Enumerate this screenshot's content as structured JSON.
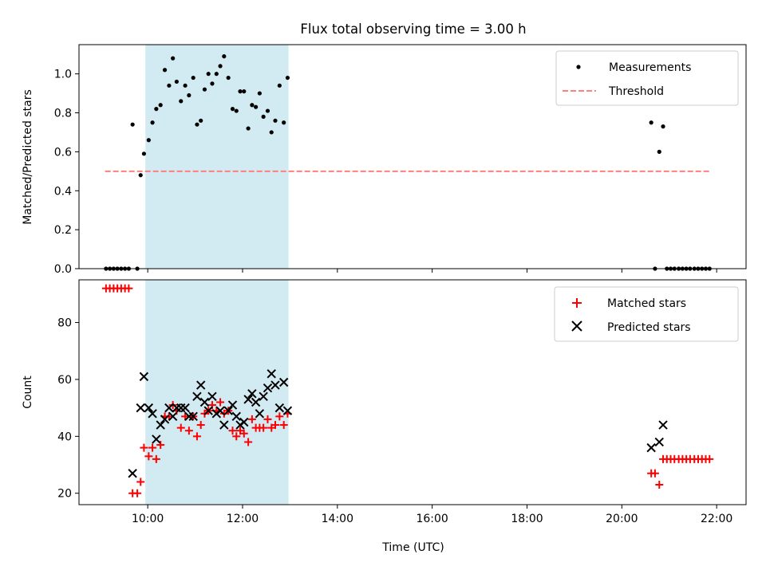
{
  "figure": {
    "title": "Flux total observing time = 3.00 h",
    "x_tick_labels": [
      "10:00",
      "12:00",
      "14:00",
      "16:00",
      "18:00",
      "20:00",
      "22:00"
    ],
    "xlabel": "Time (UTC)"
  },
  "colors": {
    "shade": "#add8e6",
    "measurements": "#000000",
    "threshold": "#ff7f7f",
    "matched": "#ff0000",
    "predicted": "#000000"
  },
  "chart_data": [
    {
      "type": "scatter",
      "x_unit": "hours UTC",
      "xlim": [
        8.55,
        22.62
      ],
      "ylim": [
        0,
        1.15
      ],
      "y_ticks": [
        0.0,
        0.2,
        0.4,
        0.6,
        0.8,
        1.0
      ],
      "y_tick_labels": [
        "0.0",
        "0.2",
        "0.4",
        "0.6",
        "0.8",
        "1.0"
      ],
      "ylabel": "Matched/Predicted stars",
      "shaded_interval": [
        9.95,
        12.97
      ],
      "legend": {
        "placement": "top-right"
      },
      "threshold": {
        "name": "Threshold",
        "value": 0.5,
        "x_range": [
          9.1,
          21.85
        ],
        "style": "dashed"
      },
      "series": [
        {
          "name": "Measurements",
          "marker": "dot",
          "x": [
            9.12,
            9.2,
            9.28,
            9.36,
            9.44,
            9.52,
            9.6,
            9.68,
            9.78,
            9.85,
            9.92,
            10.02,
            10.1,
            10.18,
            10.27,
            10.36,
            10.45,
            10.53,
            10.61,
            10.7,
            10.79,
            10.87,
            10.96,
            11.04,
            11.12,
            11.2,
            11.28,
            11.36,
            11.45,
            11.53,
            11.61,
            11.7,
            11.79,
            11.87,
            11.95,
            12.03,
            12.12,
            12.2,
            12.28,
            12.36,
            12.44,
            12.53,
            12.61,
            12.69,
            12.78,
            12.87,
            12.95,
            20.62,
            20.7,
            20.79,
            20.87,
            20.95,
            21.03,
            21.11,
            21.2,
            21.28,
            21.36,
            21.44,
            21.53,
            21.61,
            21.69,
            21.77,
            21.85
          ],
          "y": [
            0.0,
            0.0,
            0.0,
            0.0,
            0.0,
            0.0,
            0.0,
            0.74,
            0.0,
            0.48,
            0.59,
            0.66,
            0.75,
            0.82,
            0.84,
            1.02,
            0.94,
            1.08,
            0.96,
            0.86,
            0.94,
            0.89,
            0.98,
            0.74,
            0.76,
            0.92,
            1.0,
            0.95,
            1.0,
            1.04,
            1.09,
            0.98,
            0.82,
            0.81,
            0.91,
            0.91,
            0.72,
            0.84,
            0.83,
            0.9,
            0.78,
            0.81,
            0.7,
            0.76,
            0.94,
            0.75,
            0.98,
            0.75,
            0.0,
            0.6,
            0.73,
            0.0,
            0.0,
            0.0,
            0.0,
            0.0,
            0.0,
            0.0,
            0.0,
            0.0,
            0.0,
            0.0,
            0.0
          ]
        }
      ]
    },
    {
      "type": "scatter",
      "x_unit": "hours UTC",
      "xlim": [
        8.55,
        22.62
      ],
      "ylim": [
        16,
        95
      ],
      "y_ticks": [
        20,
        40,
        60,
        80
      ],
      "y_tick_labels": [
        "20",
        "40",
        "60",
        "80"
      ],
      "ylabel": "Count",
      "shaded_interval": [
        9.95,
        12.97
      ],
      "legend": {
        "placement": "top-right"
      },
      "series": [
        {
          "name": "Matched stars",
          "marker": "plus",
          "x": [
            9.12,
            9.2,
            9.28,
            9.36,
            9.44,
            9.52,
            9.6,
            9.68,
            9.78,
            9.85,
            9.92,
            10.02,
            10.1,
            10.18,
            10.27,
            10.36,
            10.45,
            10.53,
            10.61,
            10.7,
            10.79,
            10.87,
            10.96,
            11.04,
            11.12,
            11.2,
            11.28,
            11.36,
            11.45,
            11.53,
            11.61,
            11.7,
            11.79,
            11.87,
            11.95,
            12.03,
            12.12,
            12.2,
            12.28,
            12.36,
            12.44,
            12.53,
            12.61,
            12.69,
            12.78,
            12.87,
            12.95,
            20.62,
            20.7,
            20.79,
            20.87,
            20.95,
            21.03,
            21.11,
            21.2,
            21.28,
            21.36,
            21.44,
            21.53,
            21.61,
            21.69,
            21.77,
            21.85
          ],
          "y": [
            92,
            92,
            92,
            92,
            92,
            92,
            92,
            20,
            20,
            24,
            36,
            33,
            36,
            32,
            37,
            47,
            47,
            51,
            49,
            43,
            47,
            42,
            47,
            40,
            44,
            48,
            49,
            51,
            49,
            52,
            48,
            49,
            42,
            40,
            42,
            41,
            38,
            46,
            43,
            43,
            43,
            46,
            43,
            44,
            47,
            44,
            48,
            27,
            27,
            23,
            32,
            32,
            32,
            32,
            32,
            32,
            32,
            32,
            32,
            32,
            32,
            32,
            32
          ]
        },
        {
          "name": "Predicted stars",
          "marker": "cross",
          "x": [
            9.68,
            9.85,
            9.92,
            10.02,
            10.1,
            10.18,
            10.27,
            10.36,
            10.45,
            10.53,
            10.61,
            10.7,
            10.79,
            10.87,
            10.96,
            11.04,
            11.12,
            11.2,
            11.28,
            11.36,
            11.45,
            11.53,
            11.61,
            11.7,
            11.79,
            11.87,
            11.95,
            12.03,
            12.12,
            12.2,
            12.28,
            12.36,
            12.44,
            12.53,
            12.61,
            12.69,
            12.78,
            12.87,
            12.95,
            20.62,
            20.79,
            20.87
          ],
          "y": [
            27,
            50,
            61,
            50,
            48,
            39,
            44,
            46,
            50,
            47,
            50,
            50,
            50,
            47,
            47,
            54,
            58,
            52,
            49,
            54,
            48,
            49,
            44,
            49,
            51,
            47,
            44,
            45,
            53,
            55,
            52,
            48,
            54,
            57,
            62,
            58,
            50,
            59,
            49,
            36,
            38,
            44
          ]
        }
      ]
    }
  ]
}
